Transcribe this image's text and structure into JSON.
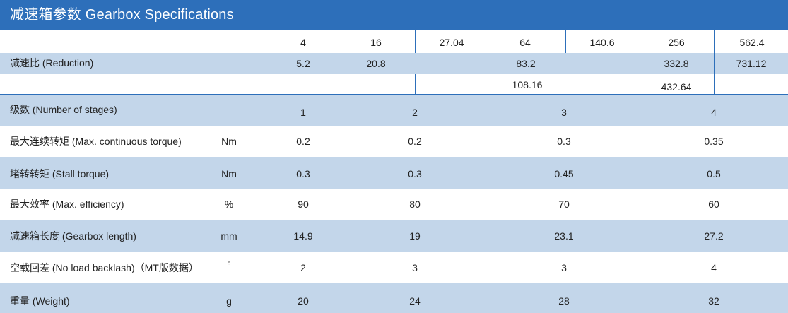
{
  "title": "减速箱参数 Gearbox Specifications",
  "colors": {
    "header": "#2d6fba",
    "band": "#c3d6ea",
    "line": "#2d6fba"
  },
  "reduction": {
    "label": "减速比 (Reduction)",
    "row1": [
      "4",
      "16",
      "27.04",
      "64",
      "140.6",
      "256",
      "562.4"
    ],
    "row2": [
      "5.2",
      "20.8",
      "83.2",
      "332.8",
      "731.12"
    ],
    "row3": [
      "108.16",
      "432.64"
    ]
  },
  "rows": [
    {
      "label": "级数 (Number of stages)",
      "unit": "",
      "values": [
        "1",
        "2",
        "3",
        "4"
      ]
    },
    {
      "label": "最大连续转矩 (Max. continuous torque)",
      "unit": "Nm",
      "values": [
        "0.2",
        "0.2",
        "0.3",
        "0.35"
      ]
    },
    {
      "label": "堵转转矩 (Stall torque)",
      "unit": "Nm",
      "values": [
        "0.3",
        "0.3",
        "0.45",
        "0.5"
      ]
    },
    {
      "label": "最大效率 (Max. efficiency)",
      "unit": "%",
      "values": [
        "90",
        "80",
        "70",
        "60"
      ]
    },
    {
      "label": "减速箱长度 (Gearbox length)",
      "unit": "mm",
      "values": [
        "14.9",
        "19",
        "23.1",
        "27.2"
      ]
    },
    {
      "label": "空载回差 (No load backlash)（MT版数据）",
      "unit": "°",
      "values": [
        "2",
        "3",
        "3",
        "4"
      ]
    },
    {
      "label": "重量 (Weight)",
      "unit": "g",
      "values": [
        "20",
        "24",
        "28",
        "32"
      ]
    }
  ]
}
